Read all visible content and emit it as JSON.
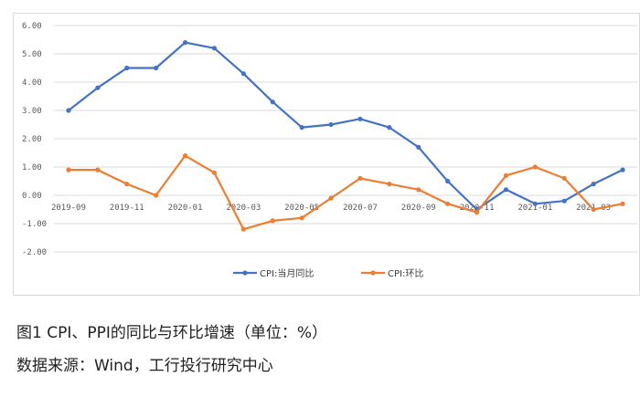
{
  "chart_data": {
    "type": "line",
    "categories": [
      "2019-09",
      "2019-10",
      "2019-11",
      "2019-12",
      "2020-01",
      "2020-02",
      "2020-03",
      "2020-04",
      "2020-05",
      "2020-06",
      "2020-07",
      "2020-08",
      "2020-09",
      "2020-10",
      "2020-11",
      "2020-12",
      "2021-01",
      "2021-02",
      "2021-03",
      "2021-04"
    ],
    "x_tick_labels": [
      "2019-09",
      "2019-11",
      "2020-01",
      "2020-03",
      "2020-05",
      "2020-07",
      "2020-09",
      "2020-11",
      "2021-01",
      "2021-03"
    ],
    "ylim": [
      -2.0,
      6.0
    ],
    "y_ticks": [
      "-2.00",
      "-1.00",
      "0.00",
      "1.00",
      "2.00",
      "3.00",
      "4.00",
      "5.00",
      "6.00"
    ],
    "grid": true,
    "legend_position": "bottom",
    "series": [
      {
        "name": "CPI:当月同比",
        "color": "#4472c4",
        "values": [
          3.0,
          3.8,
          4.5,
          4.5,
          5.4,
          5.2,
          4.3,
          3.3,
          2.4,
          2.5,
          2.7,
          2.4,
          1.7,
          0.5,
          -0.5,
          0.2,
          -0.3,
          -0.2,
          0.4,
          0.9
        ]
      },
      {
        "name": "CPI:环比",
        "color": "#ed7d31",
        "values": [
          0.9,
          0.9,
          0.4,
          0.0,
          1.4,
          0.8,
          -1.2,
          -0.9,
          -0.8,
          -0.1,
          0.6,
          0.4,
          0.2,
          -0.3,
          -0.6,
          0.7,
          1.0,
          0.6,
          -0.5,
          -0.3
        ]
      }
    ]
  },
  "caption": {
    "line1": "图1  CPI、PPI的同比与环比增速（单位：%）",
    "line2": "数据来源：Wind，工行投行研究中心"
  }
}
